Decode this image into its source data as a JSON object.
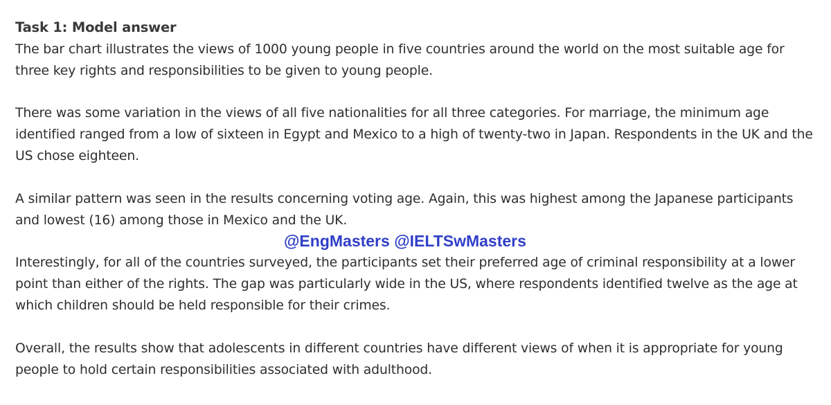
{
  "document": {
    "title": "Task 1: Model answer",
    "paragraphs": [
      "The bar chart illustrates the views of 1000 young people in five countries around the world on the most suitable age for three key rights and responsibilities to be given to young people.",
      "There was some variation in the views of all five nationalities for all three categories. For marriage, the minimum age identified ranged from a low of sixteen in Egypt and Mexico to a high of twenty-two in Japan. Respondents in the UK and the US chose eighteen.",
      "A similar pattern was seen in the results concerning voting age. Again, this was highest among the Japanese participants and lowest (16) among those in Mexico and the UK.",
      "Interestingly, for all of the countries surveyed, the participants set their preferred age of criminal responsibility at a lower point than either of the rights. The gap was particularly wide in the US, where respondents identified twelve as the age at which children should be held responsible for their crimes.",
      "Overall, the results show that adolescents in different countries have different views of when it is appropriate for young people to hold certain responsibilities associated with adulthood."
    ]
  },
  "watermark": {
    "text": "@EngMasters @IELTSwMasters",
    "color": "#2f3fc8"
  }
}
